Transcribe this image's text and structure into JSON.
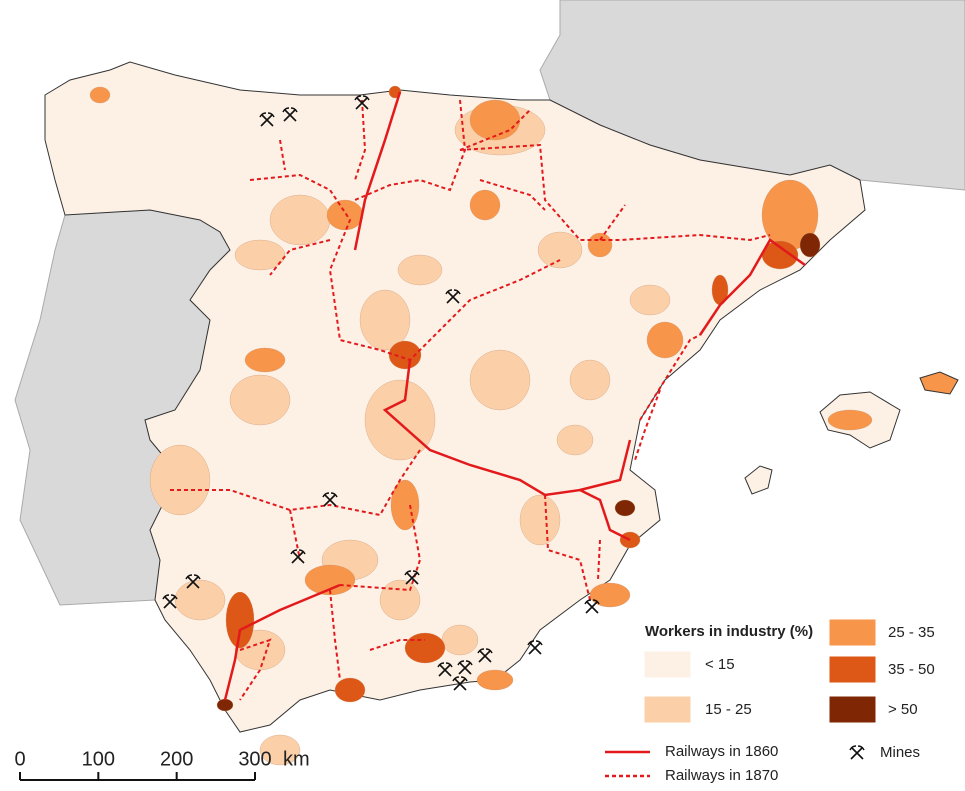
{
  "legend": {
    "title": "Workers in industry (%)",
    "classes": [
      {
        "label": "< 15",
        "color": "#fdf1e6"
      },
      {
        "label": "15 - 25",
        "color": "#fbd0a8"
      },
      {
        "label": "25 - 35",
        "color": "#f7954a"
      },
      {
        "label": "35 - 50",
        "color": "#dd5716"
      },
      {
        "label": "> 50",
        "color": "#7f2704"
      }
    ],
    "railways": [
      {
        "label": "Railways in 1860",
        "style": "solid",
        "color": "#e31a1c"
      },
      {
        "label": "Railways in 1870",
        "style": "dashed",
        "color": "#e31a1c"
      }
    ],
    "mines": "Mines"
  },
  "scale_bar": {
    "ticks": [
      0,
      100,
      200,
      300
    ],
    "unit": "km"
  }
}
